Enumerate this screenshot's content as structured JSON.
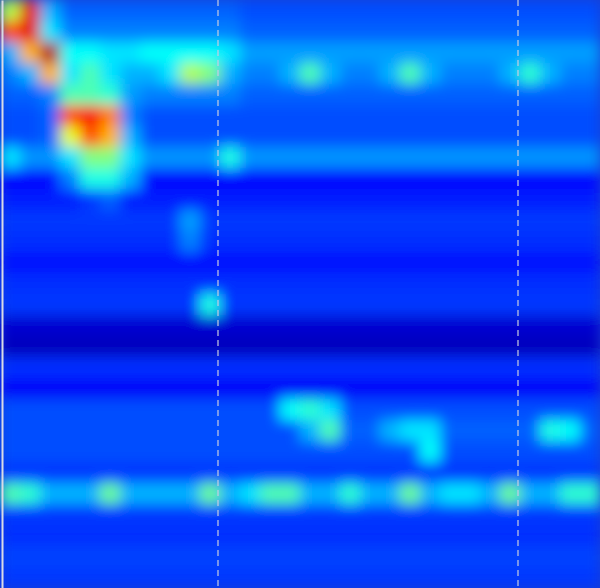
{
  "chart_data": {
    "type": "heatmap",
    "xlim": [
      0,
      30
    ],
    "ylim": [
      0,
      28
    ],
    "zlim": [
      0,
      1
    ],
    "tick_labels": false,
    "vlines": [
      10.9,
      25.9
    ],
    "line_style": "dashed",
    "cells": [
      [
        0.55,
        0.9,
        0.3,
        0.22,
        0.22,
        0.22,
        0.22,
        0.22,
        0.22,
        0.22,
        0.22,
        0.22,
        0.2,
        0.2,
        0.2,
        0.2,
        0.2,
        0.2,
        0.2,
        0.2,
        0.2,
        0.2,
        0.2,
        0.2,
        0.2,
        0.2,
        0.2,
        0.2,
        0.2,
        0.2
      ],
      [
        0.8,
        0.9,
        0.35,
        0.25,
        0.25,
        0.25,
        0.25,
        0.25,
        0.25,
        0.25,
        0.25,
        0.25,
        0.22,
        0.22,
        0.22,
        0.22,
        0.22,
        0.22,
        0.22,
        0.22,
        0.22,
        0.22,
        0.22,
        0.22,
        0.22,
        0.22,
        0.22,
        0.22,
        0.22,
        0.22
      ],
      [
        0.3,
        0.7,
        0.95,
        0.38,
        0.38,
        0.35,
        0.35,
        0.38,
        0.38,
        0.38,
        0.38,
        0.35,
        0.28,
        0.28,
        0.28,
        0.28,
        0.28,
        0.28,
        0.28,
        0.28,
        0.28,
        0.28,
        0.28,
        0.28,
        0.28,
        0.28,
        0.28,
        0.28,
        0.28,
        0.28
      ],
      [
        0.25,
        0.3,
        0.7,
        0.35,
        0.45,
        0.35,
        0.3,
        0.3,
        0.35,
        0.55,
        0.5,
        0.3,
        0.25,
        0.25,
        0.3,
        0.45,
        0.3,
        0.25,
        0.25,
        0.3,
        0.45,
        0.3,
        0.25,
        0.25,
        0.25,
        0.3,
        0.42,
        0.3,
        0.25,
        0.25
      ],
      [
        0.22,
        0.22,
        0.25,
        0.45,
        0.45,
        0.42,
        0.28,
        0.25,
        0.25,
        0.25,
        0.25,
        0.25,
        0.22,
        0.22,
        0.22,
        0.22,
        0.22,
        0.22,
        0.22,
        0.22,
        0.22,
        0.22,
        0.22,
        0.22,
        0.22,
        0.22,
        0.22,
        0.22,
        0.22,
        0.22
      ],
      [
        0.2,
        0.2,
        0.22,
        0.8,
        0.88,
        0.75,
        0.25,
        0.2,
        0.2,
        0.2,
        0.2,
        0.2,
        0.2,
        0.2,
        0.2,
        0.2,
        0.2,
        0.2,
        0.2,
        0.2,
        0.2,
        0.2,
        0.2,
        0.2,
        0.2,
        0.2,
        0.2,
        0.2,
        0.2,
        0.2
      ],
      [
        0.2,
        0.2,
        0.22,
        0.6,
        0.8,
        0.7,
        0.3,
        0.2,
        0.2,
        0.2,
        0.2,
        0.2,
        0.2,
        0.2,
        0.2,
        0.2,
        0.2,
        0.2,
        0.2,
        0.2,
        0.2,
        0.2,
        0.2,
        0.2,
        0.2,
        0.2,
        0.2,
        0.2,
        0.2,
        0.2
      ],
      [
        0.35,
        0.27,
        0.27,
        0.35,
        0.5,
        0.5,
        0.35,
        0.27,
        0.27,
        0.27,
        0.27,
        0.4,
        0.27,
        0.27,
        0.27,
        0.27,
        0.27,
        0.27,
        0.27,
        0.27,
        0.27,
        0.27,
        0.27,
        0.27,
        0.27,
        0.27,
        0.27,
        0.27,
        0.27,
        0.27
      ],
      [
        0.13,
        0.13,
        0.13,
        0.25,
        0.4,
        0.4,
        0.3,
        0.13,
        0.13,
        0.13,
        0.13,
        0.13,
        0.13,
        0.13,
        0.13,
        0.13,
        0.13,
        0.13,
        0.13,
        0.13,
        0.13,
        0.13,
        0.13,
        0.13,
        0.13,
        0.13,
        0.13,
        0.13,
        0.13,
        0.13
      ],
      [
        0.15,
        0.15,
        0.15,
        0.15,
        0.18,
        0.22,
        0.15,
        0.15,
        0.15,
        0.15,
        0.15,
        0.15,
        0.15,
        0.15,
        0.15,
        0.15,
        0.15,
        0.15,
        0.15,
        0.15,
        0.15,
        0.15,
        0.15,
        0.15,
        0.15,
        0.15,
        0.15,
        0.15,
        0.15,
        0.15
      ],
      [
        0.18,
        0.18,
        0.18,
        0.18,
        0.18,
        0.18,
        0.18,
        0.18,
        0.18,
        0.28,
        0.18,
        0.18,
        0.18,
        0.18,
        0.18,
        0.18,
        0.18,
        0.18,
        0.18,
        0.18,
        0.18,
        0.18,
        0.18,
        0.18,
        0.18,
        0.18,
        0.18,
        0.18,
        0.18,
        0.18
      ],
      [
        0.17,
        0.17,
        0.17,
        0.17,
        0.17,
        0.17,
        0.17,
        0.17,
        0.17,
        0.25,
        0.17,
        0.17,
        0.17,
        0.17,
        0.17,
        0.17,
        0.17,
        0.17,
        0.17,
        0.17,
        0.17,
        0.17,
        0.17,
        0.17,
        0.17,
        0.17,
        0.17,
        0.17,
        0.17,
        0.17
      ],
      [
        0.14,
        0.14,
        0.14,
        0.14,
        0.14,
        0.14,
        0.14,
        0.14,
        0.14,
        0.14,
        0.14,
        0.14,
        0.14,
        0.14,
        0.14,
        0.14,
        0.14,
        0.14,
        0.14,
        0.14,
        0.14,
        0.14,
        0.14,
        0.14,
        0.14,
        0.14,
        0.14,
        0.14,
        0.14,
        0.14
      ],
      [
        0.17,
        0.17,
        0.17,
        0.17,
        0.17,
        0.17,
        0.17,
        0.17,
        0.17,
        0.17,
        0.17,
        0.17,
        0.17,
        0.17,
        0.17,
        0.17,
        0.17,
        0.17,
        0.17,
        0.17,
        0.17,
        0.17,
        0.17,
        0.17,
        0.17,
        0.17,
        0.17,
        0.17,
        0.17,
        0.17
      ],
      [
        0.18,
        0.18,
        0.18,
        0.18,
        0.18,
        0.18,
        0.18,
        0.18,
        0.18,
        0.18,
        0.4,
        0.18,
        0.18,
        0.18,
        0.18,
        0.18,
        0.18,
        0.18,
        0.18,
        0.18,
        0.18,
        0.18,
        0.18,
        0.18,
        0.18,
        0.18,
        0.18,
        0.18,
        0.18,
        0.18
      ],
      [
        0.08,
        0.08,
        0.08,
        0.08,
        0.08,
        0.08,
        0.08,
        0.08,
        0.08,
        0.08,
        0.08,
        0.08,
        0.08,
        0.08,
        0.08,
        0.08,
        0.08,
        0.08,
        0.08,
        0.08,
        0.08,
        0.08,
        0.08,
        0.08,
        0.08,
        0.08,
        0.08,
        0.08,
        0.08,
        0.08
      ],
      [
        0.06,
        0.06,
        0.06,
        0.06,
        0.06,
        0.06,
        0.06,
        0.06,
        0.06,
        0.06,
        0.06,
        0.06,
        0.06,
        0.06,
        0.06,
        0.06,
        0.06,
        0.06,
        0.06,
        0.06,
        0.06,
        0.06,
        0.06,
        0.06,
        0.06,
        0.06,
        0.06,
        0.06,
        0.06,
        0.06
      ],
      [
        0.17,
        0.17,
        0.17,
        0.17,
        0.17,
        0.17,
        0.17,
        0.17,
        0.17,
        0.17,
        0.17,
        0.17,
        0.17,
        0.17,
        0.17,
        0.17,
        0.17,
        0.17,
        0.17,
        0.17,
        0.17,
        0.17,
        0.17,
        0.17,
        0.17,
        0.17,
        0.17,
        0.17,
        0.17,
        0.17
      ],
      [
        0.12,
        0.12,
        0.12,
        0.12,
        0.12,
        0.12,
        0.12,
        0.12,
        0.12,
        0.12,
        0.12,
        0.12,
        0.12,
        0.12,
        0.12,
        0.12,
        0.12,
        0.12,
        0.12,
        0.12,
        0.12,
        0.12,
        0.12,
        0.12,
        0.12,
        0.12,
        0.12,
        0.12,
        0.12,
        0.12
      ],
      [
        0.2,
        0.2,
        0.2,
        0.2,
        0.2,
        0.2,
        0.2,
        0.2,
        0.2,
        0.2,
        0.2,
        0.2,
        0.2,
        0.2,
        0.38,
        0.42,
        0.35,
        0.2,
        0.2,
        0.2,
        0.2,
        0.2,
        0.2,
        0.2,
        0.2,
        0.2,
        0.2,
        0.2,
        0.2,
        0.2
      ],
      [
        0.2,
        0.2,
        0.2,
        0.2,
        0.2,
        0.2,
        0.2,
        0.2,
        0.2,
        0.2,
        0.2,
        0.2,
        0.2,
        0.2,
        0.2,
        0.3,
        0.45,
        0.22,
        0.22,
        0.3,
        0.35,
        0.35,
        0.22,
        0.22,
        0.22,
        0.22,
        0.22,
        0.4,
        0.38,
        0.22
      ],
      [
        0.2,
        0.2,
        0.2,
        0.2,
        0.2,
        0.2,
        0.2,
        0.2,
        0.2,
        0.2,
        0.2,
        0.2,
        0.2,
        0.2,
        0.2,
        0.2,
        0.2,
        0.2,
        0.2,
        0.2,
        0.2,
        0.38,
        0.2,
        0.2,
        0.2,
        0.2,
        0.2,
        0.2,
        0.2,
        0.2
      ],
      [
        0.18,
        0.18,
        0.18,
        0.18,
        0.18,
        0.18,
        0.18,
        0.18,
        0.18,
        0.18,
        0.18,
        0.18,
        0.18,
        0.18,
        0.18,
        0.18,
        0.18,
        0.18,
        0.18,
        0.18,
        0.18,
        0.18,
        0.18,
        0.18,
        0.18,
        0.18,
        0.18,
        0.18,
        0.18,
        0.18
      ],
      [
        0.45,
        0.42,
        0.3,
        0.3,
        0.3,
        0.48,
        0.3,
        0.3,
        0.3,
        0.3,
        0.48,
        0.3,
        0.35,
        0.45,
        0.45,
        0.3,
        0.3,
        0.42,
        0.3,
        0.3,
        0.48,
        0.3,
        0.35,
        0.35,
        0.3,
        0.48,
        0.3,
        0.3,
        0.42,
        0.42
      ],
      [
        0.18,
        0.18,
        0.18,
        0.18,
        0.18,
        0.18,
        0.18,
        0.18,
        0.18,
        0.18,
        0.18,
        0.18,
        0.18,
        0.18,
        0.18,
        0.18,
        0.18,
        0.18,
        0.18,
        0.18,
        0.18,
        0.18,
        0.18,
        0.18,
        0.18,
        0.18,
        0.18,
        0.18,
        0.18,
        0.18
      ],
      [
        0.17,
        0.17,
        0.17,
        0.17,
        0.17,
        0.17,
        0.17,
        0.17,
        0.17,
        0.17,
        0.17,
        0.17,
        0.17,
        0.17,
        0.17,
        0.17,
        0.17,
        0.17,
        0.17,
        0.17,
        0.17,
        0.17,
        0.17,
        0.17,
        0.17,
        0.17,
        0.17,
        0.17,
        0.17,
        0.17
      ],
      [
        0.19,
        0.19,
        0.19,
        0.19,
        0.19,
        0.19,
        0.19,
        0.19,
        0.19,
        0.19,
        0.19,
        0.19,
        0.19,
        0.19,
        0.19,
        0.19,
        0.19,
        0.19,
        0.19,
        0.19,
        0.19,
        0.19,
        0.19,
        0.19,
        0.19,
        0.19,
        0.19,
        0.19,
        0.19,
        0.19
      ],
      [
        0.18,
        0.18,
        0.18,
        0.18,
        0.18,
        0.18,
        0.18,
        0.18,
        0.18,
        0.18,
        0.18,
        0.18,
        0.18,
        0.18,
        0.18,
        0.18,
        0.18,
        0.18,
        0.18,
        0.18,
        0.18,
        0.18,
        0.18,
        0.18,
        0.18,
        0.18,
        0.18,
        0.18,
        0.18,
        0.18
      ]
    ]
  }
}
